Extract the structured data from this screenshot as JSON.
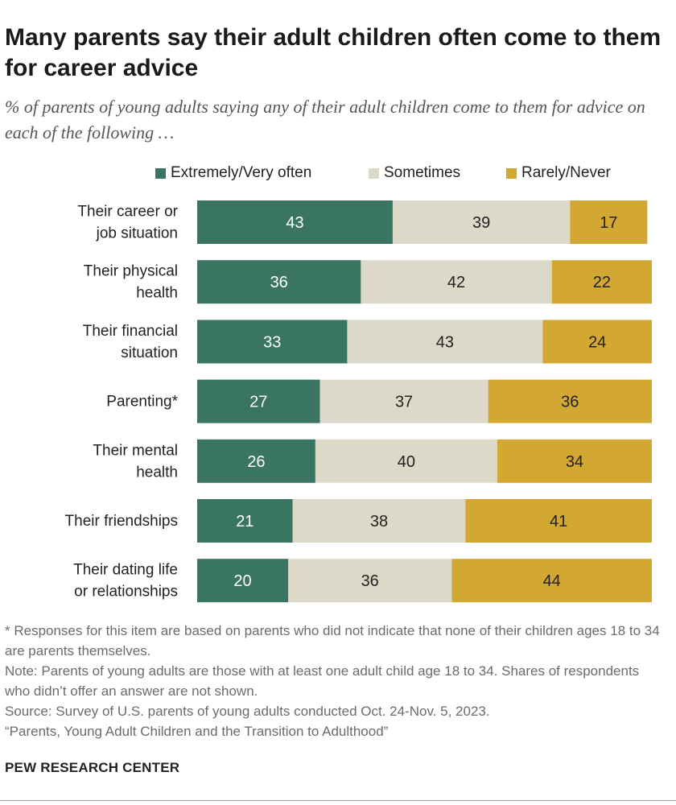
{
  "title": "Many parents say their adult children often come to them for career advice",
  "subtitle": "% of parents of young adults saying any of their adult children come to them for advice on each of the following …",
  "colors": {
    "often": "#3a7563",
    "sometimes": "#dcd9c9",
    "rarely": "#d2a732"
  },
  "legend": [
    {
      "key": "often",
      "label": "Extremely/Very often"
    },
    {
      "key": "sometimes",
      "label": "Sometimes"
    },
    {
      "key": "rarely",
      "label": "Rarely/Never"
    }
  ],
  "chart_data": {
    "type": "bar",
    "stacked": true,
    "orientation": "horizontal",
    "categories": [
      [
        "Their career or",
        "job situation"
      ],
      [
        "Their physical",
        "health"
      ],
      [
        "Their financial",
        "situation"
      ],
      [
        "Parenting*"
      ],
      [
        "Their mental",
        "health"
      ],
      [
        "Their friendships"
      ],
      [
        "Their dating life",
        "or relationships"
      ]
    ],
    "series": [
      {
        "name": "Extremely/Very often",
        "key": "often",
        "values": [
          43,
          36,
          33,
          27,
          26,
          21,
          20
        ]
      },
      {
        "name": "Sometimes",
        "key": "sometimes",
        "values": [
          39,
          42,
          43,
          37,
          40,
          38,
          36
        ]
      },
      {
        "name": "Rarely/Never",
        "key": "rarely",
        "values": [
          17,
          22,
          24,
          36,
          34,
          41,
          44
        ]
      }
    ],
    "xlim": [
      0,
      100
    ]
  },
  "notes": [
    "* Responses for this item are based on parents who did not indicate that none of their children ages 18 to 34 are parents themselves.",
    "Note: Parents of young adults are those with at least one adult child age 18 to 34. Shares of respondents who didn’t offer an answer are not shown.",
    "Source: Survey of U.S. parents of young adults conducted Oct. 24-Nov. 5, 2023.",
    "“Parents, Young Adult Children and the Transition to Adulthood”"
  ],
  "brand": "PEW RESEARCH CENTER"
}
